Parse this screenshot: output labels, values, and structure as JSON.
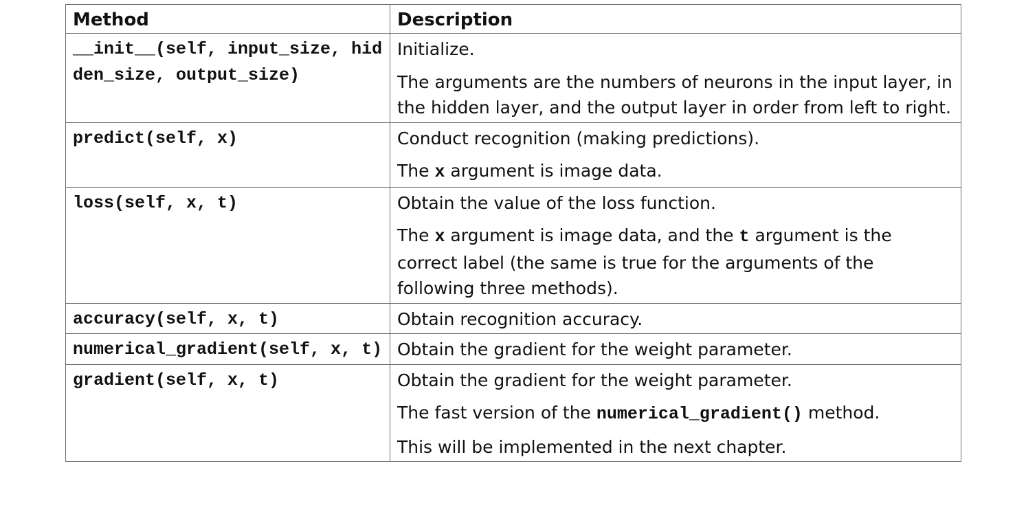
{
  "headers": {
    "method": "Method",
    "description": "Description"
  },
  "rows": [
    {
      "method": "__init__(self, input_size, hidden_size, output_size)",
      "desc": [
        {
          "segments": [
            {
              "text": "Initialize.",
              "code": false
            }
          ]
        },
        {
          "segments": [
            {
              "text": "The arguments are the numbers of neurons in the input layer, in the hidden layer, and the output layer in order from left to right.",
              "code": false
            }
          ]
        }
      ]
    },
    {
      "method": "predict(self, x)",
      "desc": [
        {
          "segments": [
            {
              "text": "Conduct recognition (making predictions).",
              "code": false
            }
          ]
        },
        {
          "segments": [
            {
              "text": "The ",
              "code": false
            },
            {
              "text": "x",
              "code": true
            },
            {
              "text": " argument is image data.",
              "code": false
            }
          ]
        }
      ]
    },
    {
      "method": "loss(self, x, t)",
      "desc": [
        {
          "segments": [
            {
              "text": "Obtain the value of the loss function.",
              "code": false
            }
          ]
        },
        {
          "segments": [
            {
              "text": "The ",
              "code": false
            },
            {
              "text": "x",
              "code": true
            },
            {
              "text": " argument is image data, and the ",
              "code": false
            },
            {
              "text": "t",
              "code": true
            },
            {
              "text": " argument is the correct label (the same is true for the arguments of the following three methods).",
              "code": false
            }
          ]
        }
      ]
    },
    {
      "method": "accuracy(self, x, t)",
      "desc": [
        {
          "segments": [
            {
              "text": "Obtain recognition accuracy.",
              "code": false
            }
          ]
        }
      ]
    },
    {
      "method": "numerical_gradient(self, x, t)",
      "desc": [
        {
          "segments": [
            {
              "text": "Obtain the gradient for the weight parameter.",
              "code": false
            }
          ]
        }
      ]
    },
    {
      "method": "gradient(self, x, t)",
      "desc": [
        {
          "segments": [
            {
              "text": "Obtain the gradient for the weight parameter.",
              "code": false
            }
          ]
        },
        {
          "segments": [
            {
              "text": "The fast version of the ",
              "code": false
            },
            {
              "text": "numerical_gradient()",
              "code": true
            },
            {
              "text": " method.",
              "code": false
            }
          ]
        },
        {
          "segments": [
            {
              "text": "This will be implemented in the next chapter.",
              "code": false
            }
          ]
        }
      ]
    }
  ]
}
